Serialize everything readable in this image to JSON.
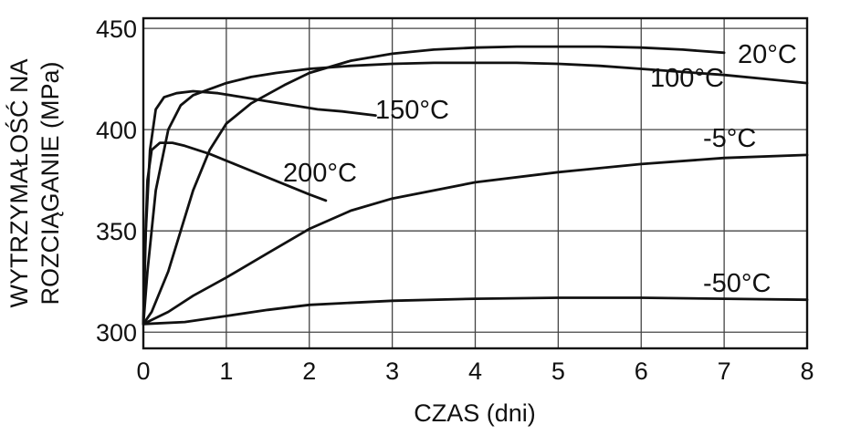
{
  "chart_data": {
    "type": "line",
    "xlabel": "CZAS (dni)",
    "ylabel_lines": [
      "WYTRZYMAŁOŚĆ NA",
      "ROZCIĄGANIE (MPa)"
    ],
    "xlim": [
      0,
      8
    ],
    "ylim": [
      292,
      455
    ],
    "x_ticks": [
      0,
      1,
      2,
      3,
      4,
      5,
      6,
      7,
      8
    ],
    "y_ticks": [
      300,
      350,
      400,
      450
    ],
    "grid": true,
    "series": [
      {
        "name": "20°C",
        "x": [
          0,
          0.1,
          0.3,
          0.6,
          0.8,
          1.0,
          1.3,
          1.7,
          2.0,
          2.5,
          3.0,
          3.5,
          4.0,
          4.5,
          5.0,
          5.5,
          6.0,
          6.5,
          7.0
        ],
        "y": [
          304,
          310,
          330,
          370,
          390,
          403,
          413,
          422,
          428,
          434,
          437.5,
          439.5,
          440.5,
          441,
          441,
          441,
          440.5,
          439.5,
          438
        ]
      },
      {
        "name": "100°C",
        "x": [
          0,
          0.05,
          0.15,
          0.3,
          0.45,
          0.6,
          0.8,
          1.0,
          1.3,
          1.6,
          2.0,
          2.5,
          3.0,
          3.5,
          4.0,
          4.5,
          5.0,
          5.5,
          6.0,
          6.5,
          7.0,
          7.5,
          8.0
        ],
        "y": [
          304,
          330,
          370,
          400,
          412,
          417,
          420,
          423,
          426,
          428,
          430,
          431.5,
          432.5,
          433,
          433,
          433,
          432.5,
          431.5,
          430,
          428.5,
          427,
          425,
          423
        ]
      },
      {
        "name": "150°C",
        "x": [
          0,
          0.03,
          0.08,
          0.15,
          0.25,
          0.4,
          0.6,
          0.9,
          1.2,
          1.5,
          1.8,
          2.1,
          2.4,
          2.8
        ],
        "y": [
          304,
          350,
          390,
          410,
          416,
          418,
          419,
          418,
          416,
          414,
          412,
          410,
          409,
          407
        ]
      },
      {
        "name": "200°C",
        "x": [
          0,
          0.02,
          0.05,
          0.1,
          0.2,
          0.35,
          0.5,
          0.8,
          1.1,
          1.4,
          1.7,
          2.0,
          2.2
        ],
        "y": [
          304,
          340,
          375,
          390,
          393.5,
          393.5,
          392,
          388,
          383,
          378,
          373,
          368,
          365
        ]
      },
      {
        "name": "-5°C",
        "x": [
          0,
          0.3,
          0.6,
          1.0,
          1.5,
          2.0,
          2.5,
          3.0,
          4.0,
          5.0,
          6.0,
          7.0,
          8.0
        ],
        "y": [
          304,
          310,
          318,
          327,
          339,
          351,
          360,
          366,
          374,
          379,
          383,
          386,
          387.5
        ]
      },
      {
        "name": "-50°C",
        "x": [
          0,
          0.5,
          1.0,
          1.5,
          2.0,
          3.0,
          4.0,
          5.0,
          6.0,
          7.0,
          8.0
        ],
        "y": [
          304,
          305,
          308,
          311,
          313.5,
          315.5,
          316.5,
          317,
          317,
          316.5,
          316
        ]
      }
    ]
  }
}
